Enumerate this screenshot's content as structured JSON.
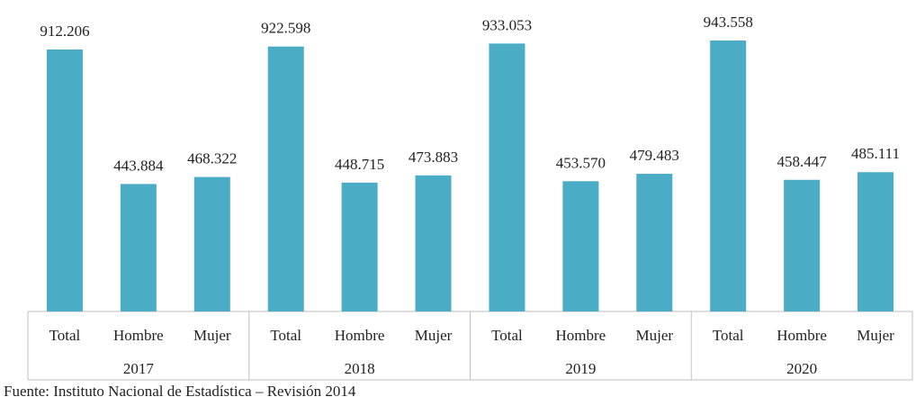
{
  "chart_data": {
    "type": "bar",
    "groups": [
      {
        "label": "2017",
        "categories": [
          "Total",
          "Hombre",
          "Mujer"
        ],
        "values": [
          912206,
          443884,
          468322
        ],
        "value_labels": [
          "912.206",
          "443.884",
          "468.322"
        ]
      },
      {
        "label": "2018",
        "categories": [
          "Total",
          "Hombre",
          "Mujer"
        ],
        "values": [
          922598,
          448715,
          473883
        ],
        "value_labels": [
          "922.598",
          "448.715",
          "473.883"
        ]
      },
      {
        "label": "2019",
        "categories": [
          "Total",
          "Hombre",
          "Mujer"
        ],
        "values": [
          933053,
          453570,
          479483
        ],
        "value_labels": [
          "933.053",
          "453.570",
          "479.483"
        ]
      },
      {
        "label": "2020",
        "categories": [
          "Total",
          "Hombre",
          "Mujer"
        ],
        "values": [
          943558,
          458447,
          485111
        ],
        "value_labels": [
          "943.558",
          "458.447",
          "485.111"
        ]
      }
    ],
    "bar_color": "#4bacc6",
    "axis_color": "#bfbfbf",
    "ylim": [
      0,
      1000000
    ],
    "grid": false,
    "legend": "none"
  },
  "source": "Fuente: Instituto Nacional de Estadística – Revisión 2014"
}
